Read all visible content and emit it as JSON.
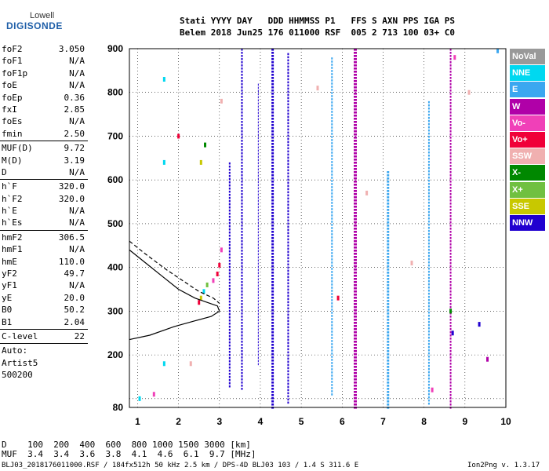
{
  "logo": {
    "top": "Lowell",
    "main": "DIGISONDE"
  },
  "header": {
    "row1": "Stati YYYY DAY   DDD HHMMSS P1   FFS S AXN PPS IGA PS",
    "row2": "Belem 2018 Jun25 176 011000 RSF  005 2 713 100 03+ C0"
  },
  "params": [
    {
      "name": "foF2",
      "value": "3.050"
    },
    {
      "name": "foF1",
      "value": "N/A"
    },
    {
      "name": "foF1p",
      "value": "N/A"
    },
    {
      "name": "foE",
      "value": "N/A"
    },
    {
      "name": "foEp",
      "value": "0.36"
    },
    {
      "name": "fxI",
      "value": "2.85"
    },
    {
      "name": "foEs",
      "value": "N/A"
    },
    {
      "name": "fmin",
      "value": "2.50",
      "sep": true
    },
    {
      "name": "MUF(D)",
      "value": "9.72"
    },
    {
      "name": "M(D)",
      "value": "3.19"
    },
    {
      "name": "D",
      "value": "N/A",
      "sep": true
    },
    {
      "name": "h`F",
      "value": "320.0"
    },
    {
      "name": "h`F2",
      "value": "320.0"
    },
    {
      "name": "h`E",
      "value": "N/A"
    },
    {
      "name": "h`Es",
      "value": "N/A",
      "sep": true
    },
    {
      "name": "hmF2",
      "value": "306.5"
    },
    {
      "name": "hmF1",
      "value": "N/A"
    },
    {
      "name": "hmE",
      "value": "110.0"
    },
    {
      "name": "yF2",
      "value": "49.7"
    },
    {
      "name": "yF1",
      "value": "N/A"
    },
    {
      "name": "yE",
      "value": "20.0"
    },
    {
      "name": "B0",
      "value": "50.2"
    },
    {
      "name": "B1",
      "value": "2.04",
      "sep": true
    },
    {
      "name": "C-level",
      "value": "22",
      "sep": true
    },
    {
      "name": "Auto:",
      "value": ""
    },
    {
      "name": "Artist5",
      "value": ""
    },
    {
      "name": "500200",
      "value": ""
    }
  ],
  "legend": [
    {
      "label": "NoVal",
      "color": "#999999"
    },
    {
      "label": "NNE",
      "color": "#00d8f0"
    },
    {
      "label": "E",
      "color": "#3ba7f0"
    },
    {
      "label": "W",
      "color": "#b000a8"
    },
    {
      "label": "Vo-",
      "color": "#f040b8"
    },
    {
      "label": "Vo+",
      "color": "#f00038"
    },
    {
      "label": "SSW",
      "color": "#f0b0b0"
    },
    {
      "label": "X-",
      "color": "#008800"
    },
    {
      "label": "X+",
      "color": "#70c040"
    },
    {
      "label": "SSE",
      "color": "#c8c800"
    },
    {
      "label": "NNW",
      "color": "#2000d0"
    }
  ],
  "distance_table": {
    "row1": "D    100  200  400  600  800 1000 1500 3000 [km]",
    "row2": "MUF  3.4  3.4  3.6  3.8  4.1  4.6  6.1  9.7 [MHz]"
  },
  "footer": {
    "left": "BLJ03_2018176011000.RSF / 184fx512h 50 kHz 2.5 km / DPS-4D BLJ03 103 / 1.4 S 311.6 E",
    "right": "Ion2Png v. 1.3.17"
  },
  "chart_data": {
    "type": "scatter",
    "title": "",
    "xlabel": "",
    "ylabel": "",
    "xlim": [
      0.8,
      10
    ],
    "ylim": [
      80,
      900
    ],
    "x_ticks": [
      1,
      2,
      3,
      4,
      5,
      6,
      7,
      8,
      9,
      10
    ],
    "y_ticks": [
      80,
      100,
      200,
      300,
      400,
      500,
      600,
      700,
      800,
      900
    ],
    "y_tick_labels": [
      80,
      200,
      300,
      400,
      500,
      600,
      700,
      800,
      900
    ],
    "grid": true,
    "traces": [
      {
        "x": 6.32,
        "y0": 80,
        "y1": 900,
        "color": "#b000a8",
        "w": 4
      },
      {
        "x": 7.12,
        "y0": 80,
        "y1": 620,
        "color": "#3ba7f0",
        "w": 3
      },
      {
        "x": 4.3,
        "y0": 80,
        "y1": 900,
        "color": "#2000d0",
        "w": 3
      },
      {
        "x": 3.55,
        "y0": 120,
        "y1": 900,
        "color": "#2000d0",
        "w": 2
      },
      {
        "x": 4.68,
        "y0": 90,
        "y1": 890,
        "color": "#2000d0",
        "w": 2
      },
      {
        "x": 3.25,
        "y0": 130,
        "y1": 640,
        "color": "#2000d0",
        "w": 2
      },
      {
        "x": 8.65,
        "y0": 80,
        "y1": 900,
        "color": "#b000a8",
        "w": 2
      },
      {
        "x": 5.75,
        "y0": 110,
        "y1": 880,
        "color": "#3ba7f0",
        "w": 2
      },
      {
        "x": 8.12,
        "y0": 90,
        "y1": 780,
        "color": "#3ba7f0",
        "w": 2
      },
      {
        "x": 3.95,
        "y0": 180,
        "y1": 820,
        "color": "#2000d0",
        "w": 1
      }
    ],
    "points": [
      {
        "x": 2.55,
        "y": 330,
        "color": "#c8c800"
      },
      {
        "x": 2.62,
        "y": 345,
        "color": "#00d8f0"
      },
      {
        "x": 2.7,
        "y": 360,
        "color": "#70c040"
      },
      {
        "x": 2.85,
        "y": 370,
        "color": "#f040b8"
      },
      {
        "x": 2.95,
        "y": 385,
        "color": "#f00038"
      },
      {
        "x": 3.0,
        "y": 405,
        "color": "#f00038"
      },
      {
        "x": 3.05,
        "y": 440,
        "color": "#f040b8"
      },
      {
        "x": 2.5,
        "y": 320,
        "color": "#f00038"
      },
      {
        "x": 1.65,
        "y": 180,
        "color": "#00d8f0"
      },
      {
        "x": 1.65,
        "y": 830,
        "color": "#00d8f0"
      },
      {
        "x": 1.65,
        "y": 640,
        "color": "#00d8f0"
      },
      {
        "x": 2.55,
        "y": 640,
        "color": "#c8c800"
      },
      {
        "x": 2.65,
        "y": 680,
        "color": "#008800"
      },
      {
        "x": 2.0,
        "y": 700,
        "color": "#f00038"
      },
      {
        "x": 1.05,
        "y": 100,
        "color": "#00d8f0"
      },
      {
        "x": 1.4,
        "y": 110,
        "color": "#f040b8"
      },
      {
        "x": 2.3,
        "y": 180,
        "color": "#f0b0b0"
      },
      {
        "x": 3.05,
        "y": 780,
        "color": "#f0b0b0"
      },
      {
        "x": 5.4,
        "y": 810,
        "color": "#f0b0b0"
      },
      {
        "x": 9.1,
        "y": 800,
        "color": "#f0b0b0"
      },
      {
        "x": 9.35,
        "y": 270,
        "color": "#2000d0"
      },
      {
        "x": 9.55,
        "y": 190,
        "color": "#b000a8"
      },
      {
        "x": 8.7,
        "y": 250,
        "color": "#2000d0"
      },
      {
        "x": 8.75,
        "y": 880,
        "color": "#f040b8"
      },
      {
        "x": 9.8,
        "y": 895,
        "color": "#3ba7f0"
      },
      {
        "x": 8.2,
        "y": 120,
        "color": "#f040b8"
      },
      {
        "x": 8.65,
        "y": 300,
        "color": "#008800"
      },
      {
        "x": 7.7,
        "y": 410,
        "color": "#f0b0b0"
      },
      {
        "x": 6.6,
        "y": 570,
        "color": "#f0b0b0"
      },
      {
        "x": 5.9,
        "y": 330,
        "color": "#f00038"
      }
    ],
    "profile_curve": {
      "style": "solid",
      "points": [
        [
          0.8,
          235
        ],
        [
          1.3,
          245
        ],
        [
          1.9,
          265
        ],
        [
          2.4,
          278
        ],
        [
          2.8,
          288
        ],
        [
          3.0,
          300
        ],
        [
          2.95,
          312
        ],
        [
          2.7,
          320
        ],
        [
          2.4,
          330
        ],
        [
          2.0,
          350
        ],
        [
          1.6,
          380
        ],
        [
          1.2,
          410
        ],
        [
          0.8,
          440
        ]
      ]
    },
    "profile_extrap": {
      "style": "dashed",
      "points": [
        [
          0.8,
          460
        ],
        [
          1.2,
          430
        ],
        [
          1.7,
          395
        ],
        [
          2.1,
          370
        ],
        [
          2.5,
          345
        ],
        [
          2.85,
          330
        ],
        [
          3.0,
          318
        ]
      ]
    }
  }
}
